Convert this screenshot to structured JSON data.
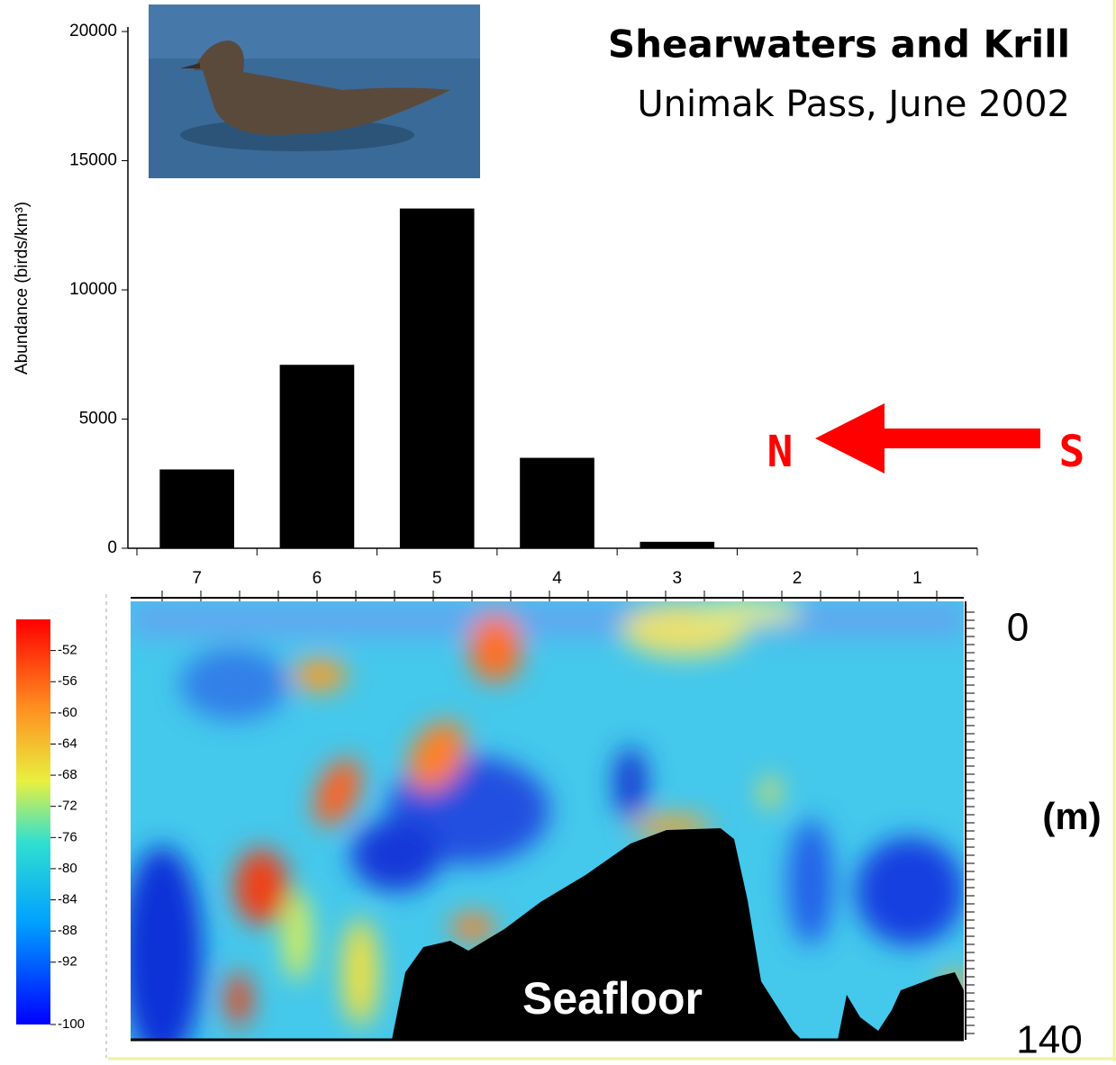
{
  "chart_data": {
    "type": "bar",
    "title": "Shearwaters and Krill",
    "subtitle": "Unimak Pass, June 2002",
    "y_label": "Abundance (birds/km³)",
    "categories": [
      "7",
      "6",
      "5",
      "4",
      "3",
      "2",
      "1"
    ],
    "values": [
      3050,
      7100,
      13150,
      3500,
      250,
      0,
      0
    ],
    "color": "#000000",
    "ylim": [
      0,
      20000
    ],
    "yticks": [
      0,
      5000,
      10000,
      15000,
      20000
    ],
    "direction": {
      "from": "S",
      "to": "N",
      "color": "#ff0000"
    },
    "echogram": {
      "label": "Seafloor",
      "depth_top": "0",
      "depth_bottom": "140",
      "depth_unit": "(m)"
    },
    "colorbar": {
      "range": [
        -100,
        -48
      ],
      "ticks": [
        -52,
        -56,
        -60,
        -64,
        -68,
        -72,
        -76,
        -80,
        -84,
        -88,
        -92,
        -100
      ]
    }
  }
}
